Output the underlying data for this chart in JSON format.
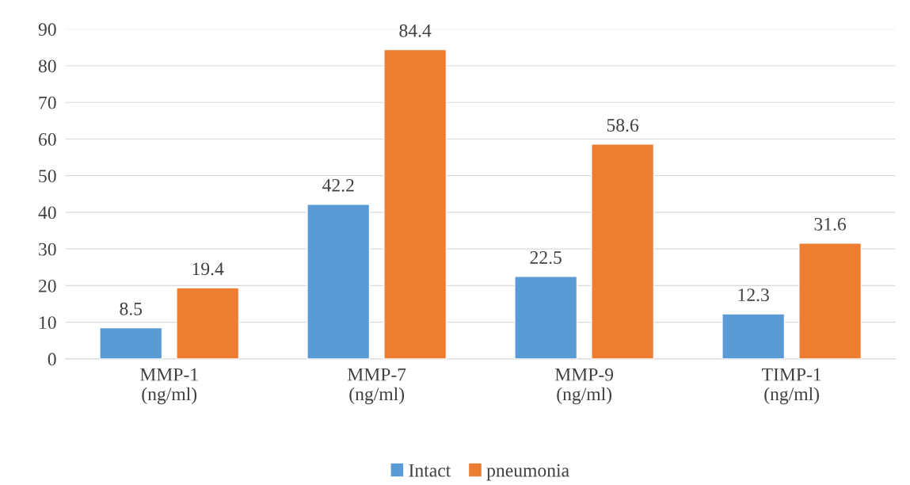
{
  "chart_data": {
    "type": "bar",
    "categories": [
      "MMP-1\n(ng/ml)",
      "MMP-7\n(ng/ml)",
      "MMP-9\n(ng/ml)",
      "TIMP-1\n(ng/ml)"
    ],
    "series": [
      {
        "name": "Intact",
        "color": "#5b9bd5",
        "values": [
          8.5,
          42.2,
          22.5,
          12.3
        ]
      },
      {
        "name": "pneumonia",
        "color": "#ed7d31",
        "values": [
          19.4,
          84.4,
          58.6,
          31.6
        ]
      }
    ],
    "ylim": [
      0,
      90
    ],
    "yticks": [
      0,
      10,
      20,
      30,
      40,
      50,
      60,
      70,
      80,
      90
    ],
    "grid": "y",
    "legend": "bottom",
    "data_labels": true
  }
}
